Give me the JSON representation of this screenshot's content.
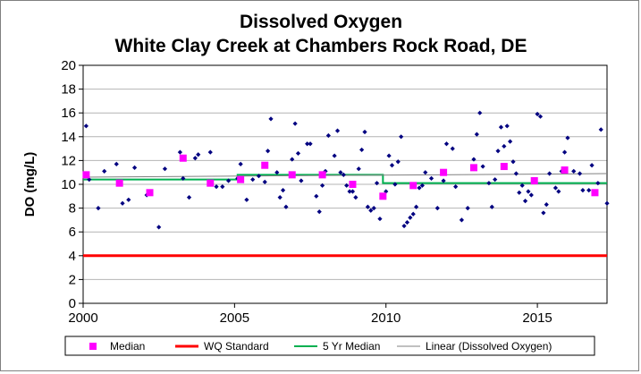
{
  "chart_data": {
    "type": "scatter",
    "title": "Dissolved Oxygen",
    "subtitle": "White Clay Creek at Chambers Rock Road, DE",
    "ylabel": "DO (mg/L)",
    "xlabel": "",
    "xlim": [
      2000,
      2017.3
    ],
    "ylim": [
      0,
      20
    ],
    "x_ticks": [
      2000,
      2005,
      2010,
      2015
    ],
    "y_ticks": [
      0,
      2,
      4,
      6,
      8,
      10,
      12,
      14,
      16,
      18,
      20
    ],
    "grid": "horizontal",
    "legend_position": "bottom",
    "colors": {
      "observations": "#000080",
      "median": "#ff00ff",
      "wq_standard": "#ff0000",
      "five_yr_median": "#00b050",
      "linear": "#808080"
    },
    "series": [
      {
        "name": "Dissolved Oxygen",
        "kind": "points",
        "points": [
          [
            2000.1,
            14.9
          ],
          [
            2000.2,
            10.4
          ],
          [
            2000.5,
            8.0
          ],
          [
            2000.7,
            11.1
          ],
          [
            2001.1,
            11.7
          ],
          [
            2001.3,
            8.4
          ],
          [
            2001.5,
            8.7
          ],
          [
            2001.7,
            11.4
          ],
          [
            2002.1,
            9.1
          ],
          [
            2002.2,
            9.3
          ],
          [
            2002.5,
            6.4
          ],
          [
            2002.7,
            11.3
          ],
          [
            2003.2,
            12.7
          ],
          [
            2003.3,
            10.5
          ],
          [
            2003.5,
            8.9
          ],
          [
            2003.7,
            12.2
          ],
          [
            2003.8,
            12.5
          ],
          [
            2004.2,
            12.7
          ],
          [
            2004.4,
            9.8
          ],
          [
            2004.6,
            9.8
          ],
          [
            2004.8,
            10.3
          ],
          [
            2005.1,
            10.5
          ],
          [
            2005.2,
            11.7
          ],
          [
            2005.4,
            8.7
          ],
          [
            2005.6,
            10.4
          ],
          [
            2005.8,
            10.7
          ],
          [
            2006.0,
            10.2
          ],
          [
            2006.1,
            12.8
          ],
          [
            2006.2,
            15.5
          ],
          [
            2006.4,
            11.0
          ],
          [
            2006.5,
            8.9
          ],
          [
            2006.6,
            9.5
          ],
          [
            2006.7,
            8.1
          ],
          [
            2006.9,
            12.1
          ],
          [
            2007.0,
            15.1
          ],
          [
            2007.1,
            12.6
          ],
          [
            2007.2,
            10.3
          ],
          [
            2007.4,
            13.4
          ],
          [
            2007.5,
            13.4
          ],
          [
            2007.7,
            9.0
          ],
          [
            2007.8,
            7.7
          ],
          [
            2007.9,
            9.9
          ],
          [
            2008.0,
            11.1
          ],
          [
            2008.1,
            14.1
          ],
          [
            2008.3,
            12.4
          ],
          [
            2008.4,
            14.5
          ],
          [
            2008.5,
            11.0
          ],
          [
            2008.6,
            10.8
          ],
          [
            2008.7,
            9.9
          ],
          [
            2008.8,
            9.4
          ],
          [
            2008.9,
            9.4
          ],
          [
            2009.0,
            8.9
          ],
          [
            2009.1,
            11.3
          ],
          [
            2009.2,
            12.9
          ],
          [
            2009.3,
            14.4
          ],
          [
            2009.4,
            8.1
          ],
          [
            2009.5,
            7.8
          ],
          [
            2009.6,
            8.0
          ],
          [
            2009.7,
            10.1
          ],
          [
            2009.8,
            7.1
          ],
          [
            2009.9,
            9.1
          ],
          [
            2010.0,
            9.4
          ],
          [
            2010.1,
            12.4
          ],
          [
            2010.2,
            11.6
          ],
          [
            2010.3,
            10.0
          ],
          [
            2010.4,
            11.9
          ],
          [
            2010.5,
            14.0
          ],
          [
            2010.6,
            6.5
          ],
          [
            2010.7,
            6.8
          ],
          [
            2010.8,
            7.2
          ],
          [
            2010.9,
            7.5
          ],
          [
            2011.0,
            8.1
          ],
          [
            2011.1,
            9.7
          ],
          [
            2011.2,
            9.9
          ],
          [
            2011.3,
            11.0
          ],
          [
            2011.5,
            10.5
          ],
          [
            2011.7,
            8.0
          ],
          [
            2011.9,
            10.3
          ],
          [
            2012.0,
            13.4
          ],
          [
            2012.2,
            13.0
          ],
          [
            2012.3,
            9.8
          ],
          [
            2012.5,
            7.0
          ],
          [
            2012.7,
            8.0
          ],
          [
            2012.9,
            12.1
          ],
          [
            2013.0,
            14.2
          ],
          [
            2013.1,
            16.0
          ],
          [
            2013.2,
            11.5
          ],
          [
            2013.4,
            10.1
          ],
          [
            2013.5,
            8.1
          ],
          [
            2013.6,
            10.4
          ],
          [
            2013.7,
            12.8
          ],
          [
            2013.8,
            14.8
          ],
          [
            2013.9,
            13.2
          ],
          [
            2014.0,
            14.9
          ],
          [
            2014.1,
            13.6
          ],
          [
            2014.2,
            11.9
          ],
          [
            2014.3,
            10.9
          ],
          [
            2014.4,
            9.3
          ],
          [
            2014.5,
            9.9
          ],
          [
            2014.6,
            8.6
          ],
          [
            2014.7,
            9.4
          ],
          [
            2014.8,
            9.1
          ],
          [
            2014.9,
            10.3
          ],
          [
            2015.0,
            15.9
          ],
          [
            2015.1,
            15.7
          ],
          [
            2015.2,
            7.6
          ],
          [
            2015.3,
            8.3
          ],
          [
            2015.4,
            10.9
          ],
          [
            2015.6,
            9.7
          ],
          [
            2015.7,
            9.4
          ],
          [
            2015.8,
            11.1
          ],
          [
            2015.9,
            12.7
          ],
          [
            2016.0,
            13.9
          ],
          [
            2016.2,
            11.1
          ],
          [
            2016.4,
            10.9
          ],
          [
            2016.5,
            9.5
          ],
          [
            2016.7,
            9.5
          ],
          [
            2016.8,
            11.6
          ],
          [
            2017.0,
            10.1
          ],
          [
            2017.1,
            14.6
          ],
          [
            2017.3,
            8.4
          ],
          [
            2000.1,
            10.8
          ]
        ]
      },
      {
        "name": "Median",
        "kind": "squares",
        "points": [
          [
            2000.1,
            10.8
          ],
          [
            2001.2,
            10.1
          ],
          [
            2002.2,
            9.3
          ],
          [
            2003.3,
            12.2
          ],
          [
            2004.2,
            10.1
          ],
          [
            2005.2,
            10.4
          ],
          [
            2006.0,
            11.6
          ],
          [
            2006.9,
            10.8
          ],
          [
            2007.9,
            10.8
          ],
          [
            2008.9,
            10.0
          ],
          [
            2009.9,
            9.0
          ],
          [
            2010.9,
            9.9
          ],
          [
            2011.9,
            11.0
          ],
          [
            2012.9,
            11.4
          ],
          [
            2013.9,
            11.5
          ],
          [
            2014.9,
            10.3
          ],
          [
            2015.9,
            11.2
          ],
          [
            2016.9,
            9.3
          ]
        ]
      },
      {
        "name": "WQ Standard",
        "kind": "line",
        "points": [
          [
            2000,
            4.0
          ],
          [
            2017.3,
            4.0
          ]
        ]
      },
      {
        "name": "5 Yr Median",
        "kind": "line",
        "points": [
          [
            2000,
            10.4
          ],
          [
            2005.1,
            10.4
          ],
          [
            2005.1,
            10.8
          ],
          [
            2009.9,
            10.8
          ],
          [
            2009.9,
            10.1
          ],
          [
            2017.3,
            10.1
          ]
        ]
      },
      {
        "name": "Linear (Dissolved Oxygen)",
        "kind": "line",
        "points": [
          [
            2000,
            10.6
          ],
          [
            2017.3,
            10.9
          ]
        ]
      }
    ]
  }
}
